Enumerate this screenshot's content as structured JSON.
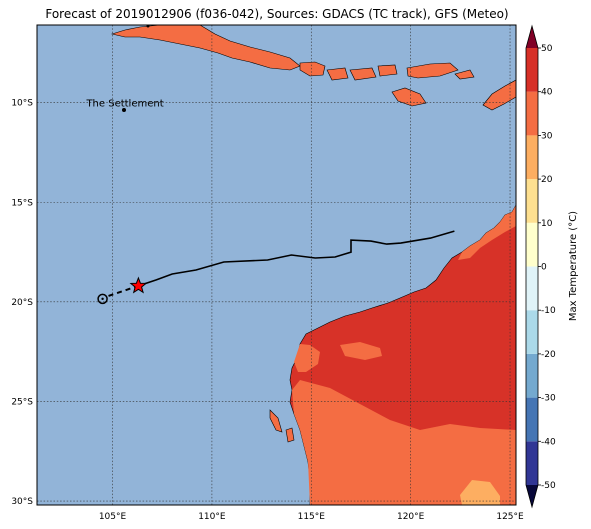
{
  "map": {
    "title": "Forecast of 2019012906 (f036-042), Sources: GDACS (TC track), GFS (Meteo)",
    "lon_range": [
      101.2,
      125.3
    ],
    "lat_range": [
      -30.2,
      -6.1
    ],
    "lat_ticks": [
      {
        "value": -10,
        "label": "10°S"
      },
      {
        "value": -15,
        "label": "15°S"
      },
      {
        "value": -20,
        "label": "20°S"
      },
      {
        "value": -25,
        "label": "25°S"
      },
      {
        "value": -30,
        "label": "30°S"
      }
    ],
    "lon_ticks": [
      {
        "value": 105,
        "label": "105°E"
      },
      {
        "value": 110,
        "label": "110°E"
      },
      {
        "value": 115,
        "label": "115°E"
      },
      {
        "value": 120,
        "label": "120°E"
      },
      {
        "value": 125,
        "label": "125°E"
      }
    ],
    "place_label": {
      "text": "The Settlement",
      "lon": 105.6,
      "lat": -10.45
    },
    "colors": {
      "ocean": "#92b4d8",
      "land_hot": "#d73228",
      "land_warm": "#f46d43",
      "land_mild": "#fdae61",
      "gridline": "#333333",
      "track": "#000000",
      "star": "#ff0000"
    }
  },
  "chart_data": {
    "type": "map",
    "track": {
      "lon": [
        104.5,
        105.2,
        106.3,
        107.2,
        108.0,
        109.2,
        110.6,
        112.8,
        114.0,
        115.2,
        116.2,
        117.0,
        117.0,
        118.0,
        118.8,
        119.5,
        121.0,
        122.2
      ],
      "lat": [
        -19.85,
        -19.5,
        -19.2,
        -18.9,
        -18.6,
        -18.4,
        -18.0,
        -17.9,
        -17.65,
        -17.8,
        -17.75,
        -17.5,
        -16.9,
        -16.95,
        -17.1,
        -17.05,
        -16.8,
        -16.45
      ]
    },
    "current_position": {
      "lon": 106.3,
      "lat": -19.2
    },
    "previous_position": {
      "lon": 104.5,
      "lat": -19.85
    },
    "colorbar": {
      "label": "Max Temperature (°C)",
      "min": -50,
      "max": 50,
      "ticks": [
        50,
        40,
        30,
        20,
        10,
        0,
        -10,
        -20,
        -30,
        -40,
        -50
      ],
      "bands": [
        {
          "from": -50,
          "to": -40,
          "color": "#313695"
        },
        {
          "from": -40,
          "to": -30,
          "color": "#4575b4"
        },
        {
          "from": -30,
          "to": -20,
          "color": "#74a9cf"
        },
        {
          "from": -20,
          "to": -10,
          "color": "#abd9e9"
        },
        {
          "from": -10,
          "to": 0,
          "color": "#e0f3f8"
        },
        {
          "from": 0,
          "to": 10,
          "color": "#ffffcc"
        },
        {
          "from": 10,
          "to": 20,
          "color": "#fee090"
        },
        {
          "from": 20,
          "to": 30,
          "color": "#fdae61"
        },
        {
          "from": 30,
          "to": 40,
          "color": "#f46d43"
        },
        {
          "from": 40,
          "to": 50,
          "color": "#d73027"
        }
      ],
      "extend_low_color": "#08083a",
      "extend_high_color": "#800026"
    }
  }
}
